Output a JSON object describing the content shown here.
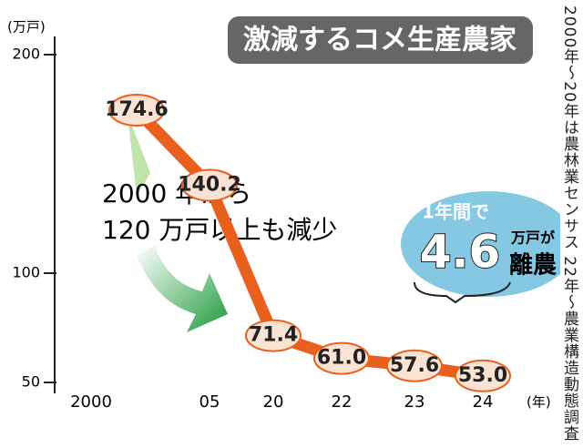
{
  "chart_data": {
    "type": "line",
    "title": "激減するコメ生産農家",
    "y_label": "(万戸)",
    "x_label": "(年)",
    "categories": [
      "2000",
      "05",
      "20",
      "22",
      "23",
      "24"
    ],
    "series": [
      {
        "name": "コメ生産農家",
        "color": "#e8601c",
        "values": [
          174.6,
          140.2,
          71.4,
          61.0,
          57.6,
          53.0
        ],
        "value_labels": [
          "174.6",
          "140.2",
          "71.4",
          "61.0",
          "57.6",
          "53.0"
        ]
      }
    ],
    "ylim": [
      50,
      200
    ],
    "yticks": [
      50,
      100,
      200
    ],
    "annotations": [
      "2000 年から",
      "120 万戸以上も減少"
    ],
    "bubble": {
      "line1": "1年間で",
      "number": "4.6",
      "unit": "万戸が",
      "text": "離農"
    },
    "source": "2000年～20年は農林業センサス 22年～農業構造動態調査"
  }
}
